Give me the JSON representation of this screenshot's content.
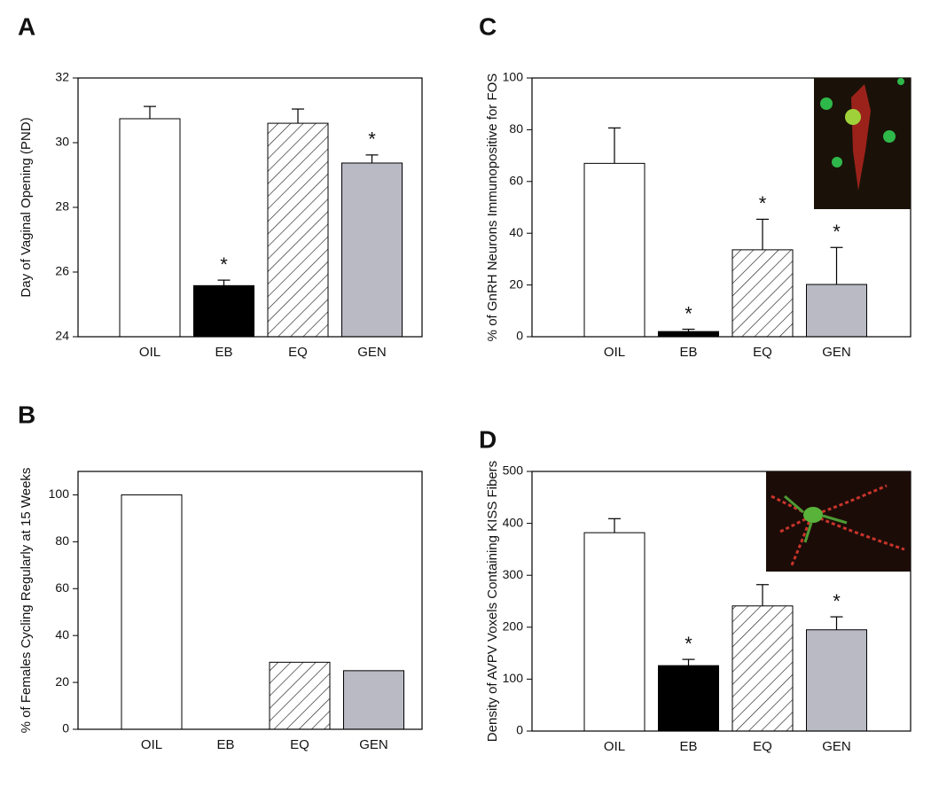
{
  "chart_data": [
    {
      "panel": "A",
      "type": "bar",
      "ylabel": "Day of Vaginal Opening (PND)",
      "categories": [
        "OIL",
        "EB",
        "EQ",
        "GEN"
      ],
      "values": [
        30.74,
        25.58,
        30.6,
        29.37
      ],
      "errors": [
        0.38,
        0.17,
        0.44,
        0.25
      ],
      "markers": [
        null,
        "*",
        null,
        "*"
      ],
      "ylim": [
        24,
        32
      ],
      "yticks": [
        24,
        26,
        28,
        30,
        32
      ],
      "bar_colors": [
        "#ffffff",
        "#000000",
        "#ffffff",
        "#b9bac4"
      ],
      "hatched": [
        false,
        false,
        true,
        false
      ]
    },
    {
      "panel": "C",
      "type": "bar",
      "ylabel": "% of GnRH Neurons Immunopositive for FOS",
      "categories": [
        "OIL",
        "EB",
        "EQ",
        "GEN"
      ],
      "values": [
        67,
        2,
        33.6,
        20.2
      ],
      "errors": [
        13.7,
        0.9,
        11.8,
        14.3
      ],
      "markers": [
        null,
        "*",
        "*",
        "*"
      ],
      "ylim": [
        0,
        100
      ],
      "yticks": [
        0,
        20,
        40,
        60,
        80,
        100
      ],
      "bar_colors": [
        "#ffffff",
        "#000000",
        "#ffffff",
        "#b9bac4"
      ],
      "hatched": [
        false,
        false,
        true,
        false
      ]
    },
    {
      "panel": "B",
      "type": "bar",
      "ylabel": "% of Females Cycling Regularly at 15 Weeks",
      "categories": [
        "OIL",
        "EB",
        "EQ",
        "GEN"
      ],
      "values": [
        100,
        0,
        28.6,
        25
      ],
      "ylim": [
        0,
        110
      ],
      "yticks": [
        0,
        20,
        40,
        60,
        80,
        100
      ],
      "bar_colors": [
        "#ffffff",
        "#000000",
        "#ffffff",
        "#b9bac4"
      ],
      "hatched": [
        false,
        false,
        true,
        false
      ]
    },
    {
      "panel": "D",
      "type": "bar",
      "ylabel": "Density of AVPV Voxels Containing KISS Fibers",
      "categories": [
        "OIL",
        "EB",
        "EQ",
        "GEN"
      ],
      "values": [
        382,
        126,
        241,
        195
      ],
      "errors": [
        27,
        12,
        41,
        25
      ],
      "markers": [
        null,
        "*",
        null,
        "*"
      ],
      "ylim": [
        0,
        500
      ],
      "yticks": [
        0,
        100,
        200,
        300,
        400,
        500
      ],
      "bar_colors": [
        "#ffffff",
        "#000000",
        "#ffffff",
        "#b9bac4"
      ],
      "hatched": [
        false,
        false,
        true,
        false
      ]
    }
  ]
}
